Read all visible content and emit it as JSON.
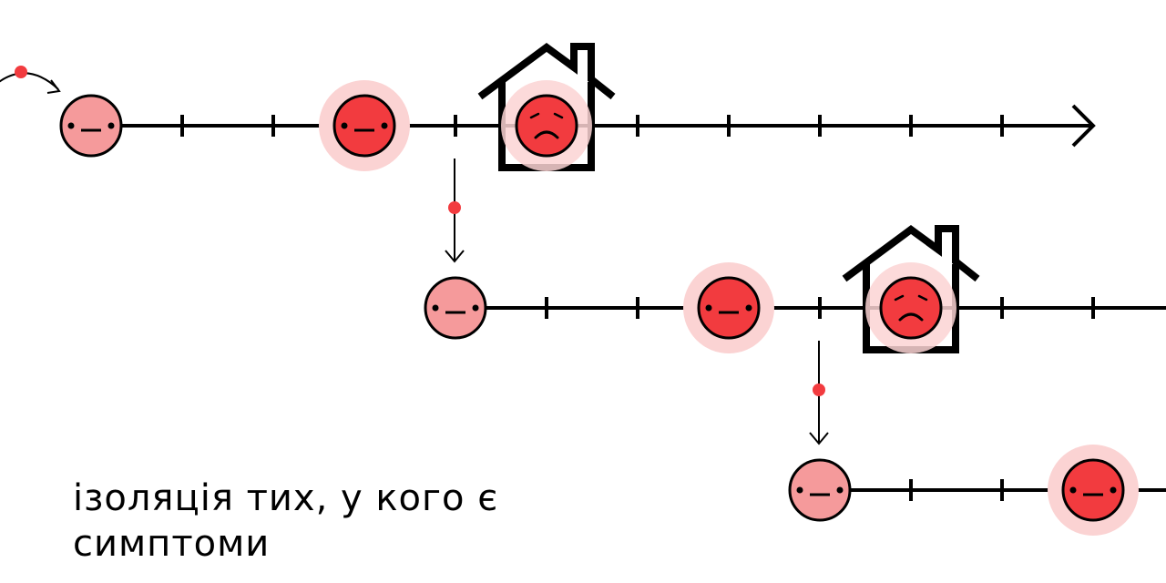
{
  "caption": "ізоляція тих, у кого є симптоми",
  "colors": {
    "line": "#000000",
    "face_mild": "#f59a9b",
    "face_infected": "#f23b3f",
    "halo": "#fbd3d3",
    "transmission_dot": "#f23b3f"
  },
  "icons": {
    "neutral_face": "neutral-face-icon",
    "sad_face": "sad-face-icon",
    "house": "house-icon",
    "arrow": "arrow-icon"
  },
  "timelines": [
    {
      "faces": [
        {
          "step": 0,
          "state": "exposed",
          "mood": "neutral"
        },
        {
          "step": 3,
          "state": "infectious",
          "mood": "neutral"
        },
        {
          "step": 5,
          "state": "symptomatic",
          "mood": "sad",
          "isolated": true
        }
      ]
    },
    {
      "faces": [
        {
          "step": 0,
          "state": "exposed",
          "mood": "neutral"
        },
        {
          "step": 3,
          "state": "infectious",
          "mood": "neutral"
        },
        {
          "step": 5,
          "state": "symptomatic",
          "mood": "sad",
          "isolated": true
        }
      ]
    },
    {
      "faces": [
        {
          "step": 0,
          "state": "exposed",
          "mood": "neutral"
        },
        {
          "step": 3,
          "state": "infectious",
          "mood": "neutral"
        }
      ]
    }
  ]
}
